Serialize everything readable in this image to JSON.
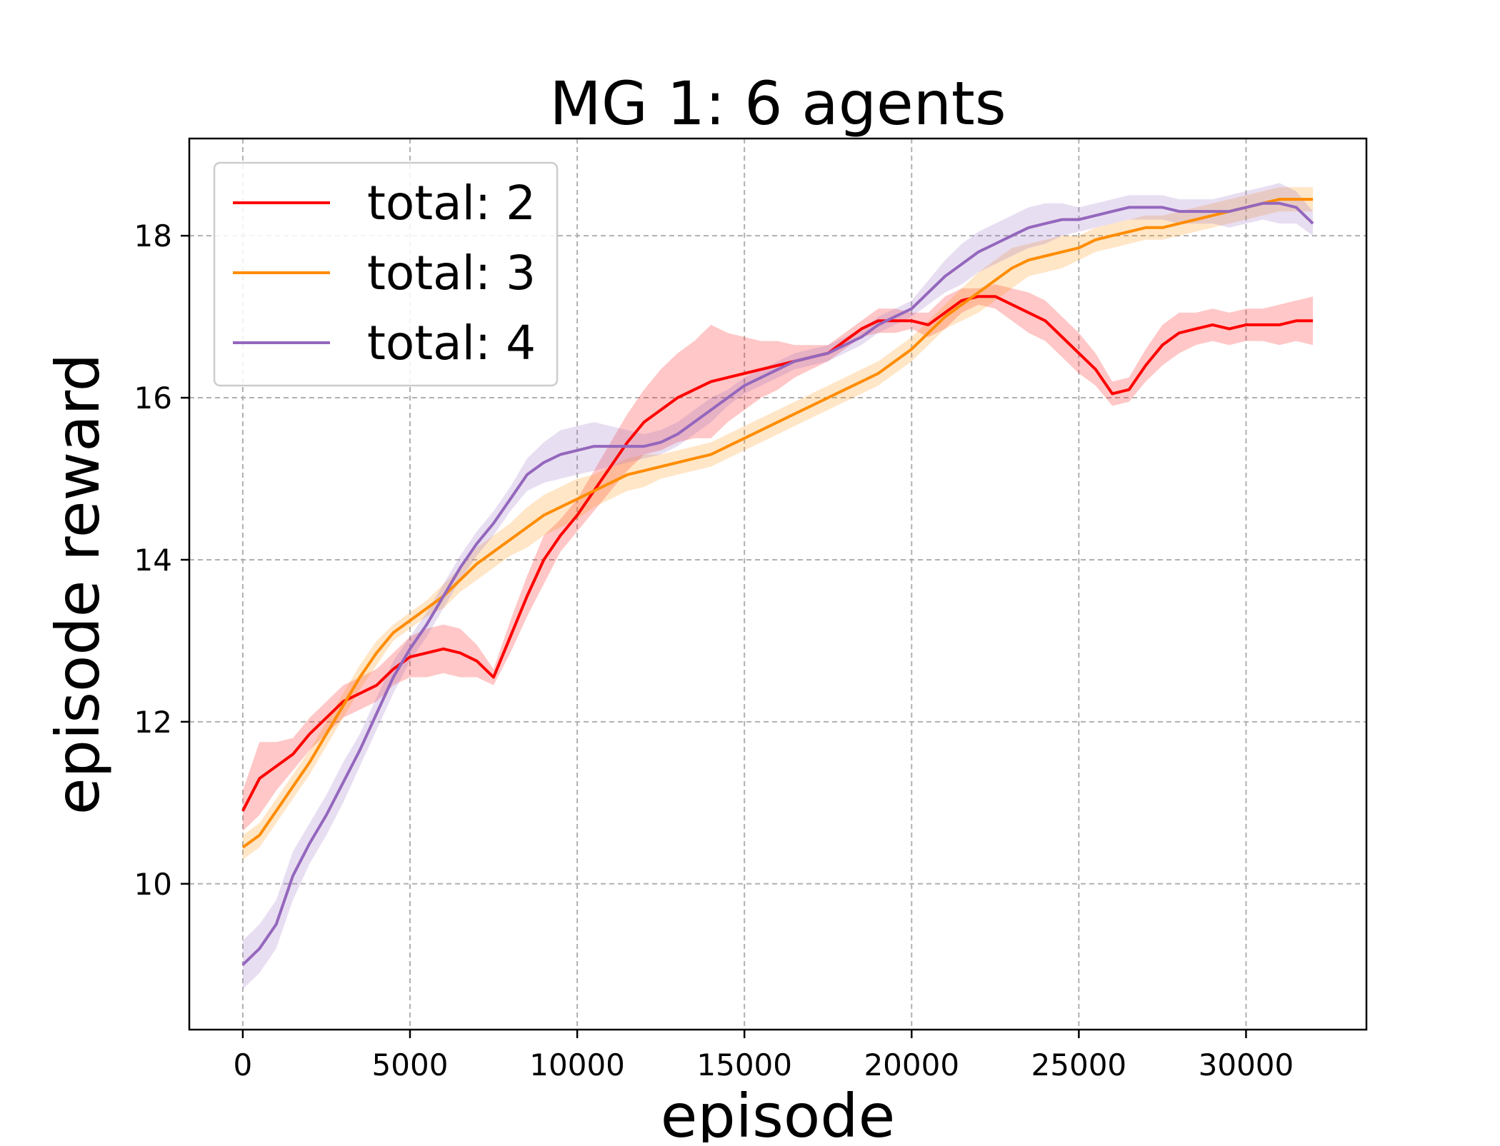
{
  "chart_data": {
    "type": "line",
    "title": "MG 1: 6 agents",
    "xlabel": "episode",
    "ylabel": "episode reward",
    "xlim": [
      -1600,
      33600
    ],
    "ylim": [
      8.2,
      19.2
    ],
    "xticks": [
      0,
      5000,
      10000,
      15000,
      20000,
      25000,
      30000
    ],
    "yticks": [
      10,
      12,
      14,
      16,
      18
    ],
    "grid": true,
    "legend_position": "top-left",
    "series": [
      {
        "name": "total: 2",
        "color": "#ff0000",
        "x": [
          0,
          500,
          1000,
          1500,
          2000,
          2500,
          3000,
          3500,
          4000,
          4500,
          5000,
          5500,
          6000,
          6500,
          7000,
          7500,
          8000,
          8500,
          9000,
          9500,
          10000,
          10500,
          11000,
          11500,
          12000,
          12500,
          13000,
          13500,
          14000,
          14500,
          15000,
          15500,
          16000,
          16500,
          17000,
          17500,
          18000,
          18500,
          19000,
          19500,
          20000,
          20500,
          21000,
          21500,
          22000,
          22500,
          23000,
          23500,
          24000,
          24500,
          25000,
          25500,
          26000,
          26500,
          27000,
          27500,
          28000,
          28500,
          29000,
          29500,
          30000,
          30500,
          31000,
          31500,
          32000
        ],
        "y": [
          10.9,
          11.3,
          11.45,
          11.6,
          11.85,
          12.05,
          12.25,
          12.35,
          12.45,
          12.65,
          12.8,
          12.85,
          12.9,
          12.85,
          12.75,
          12.55,
          13.05,
          13.55,
          14.0,
          14.3,
          14.55,
          14.85,
          15.15,
          15.45,
          15.7,
          15.85,
          16.0,
          16.1,
          16.2,
          16.25,
          16.3,
          16.35,
          16.4,
          16.45,
          16.5,
          16.55,
          16.7,
          16.85,
          16.95,
          16.95,
          16.95,
          16.9,
          17.05,
          17.2,
          17.25,
          17.25,
          17.15,
          17.05,
          16.95,
          16.75,
          16.55,
          16.35,
          16.05,
          16.1,
          16.4,
          16.65,
          16.8,
          16.85,
          16.9,
          16.85,
          16.9,
          16.9,
          16.9,
          16.95,
          16.95
        ],
        "band": [
          0.25,
          0.45,
          0.3,
          0.2,
          0.2,
          0.2,
          0.2,
          0.2,
          0.2,
          0.2,
          0.25,
          0.3,
          0.3,
          0.3,
          0.2,
          0.1,
          0.2,
          0.25,
          0.3,
          0.2,
          0.2,
          0.25,
          0.3,
          0.35,
          0.4,
          0.5,
          0.55,
          0.6,
          0.7,
          0.55,
          0.45,
          0.35,
          0.3,
          0.2,
          0.15,
          0.1,
          0.1,
          0.1,
          0.15,
          0.15,
          0.1,
          0.15,
          0.2,
          0.15,
          0.1,
          0.15,
          0.2,
          0.25,
          0.25,
          0.25,
          0.25,
          0.2,
          0.15,
          0.15,
          0.2,
          0.25,
          0.25,
          0.2,
          0.2,
          0.2,
          0.2,
          0.2,
          0.25,
          0.25,
          0.3
        ]
      },
      {
        "name": "total: 3",
        "color": "#ff8c00",
        "x": [
          0,
          500,
          1000,
          1500,
          2000,
          2500,
          3000,
          3500,
          4000,
          4500,
          5000,
          5500,
          6000,
          6500,
          7000,
          7500,
          8000,
          8500,
          9000,
          9500,
          10000,
          10500,
          11000,
          11500,
          12000,
          12500,
          13000,
          13500,
          14000,
          14500,
          15000,
          15500,
          16000,
          16500,
          17000,
          17500,
          18000,
          18500,
          19000,
          19500,
          20000,
          20500,
          21000,
          21500,
          22000,
          22500,
          23000,
          23500,
          24000,
          24500,
          25000,
          25500,
          26000,
          26500,
          27000,
          27500,
          28000,
          28500,
          29000,
          29500,
          30000,
          30500,
          31000,
          31500,
          32000
        ],
        "y": [
          10.45,
          10.6,
          10.9,
          11.2,
          11.5,
          11.85,
          12.2,
          12.55,
          12.85,
          13.1,
          13.25,
          13.4,
          13.55,
          13.75,
          13.95,
          14.1,
          14.25,
          14.4,
          14.55,
          14.65,
          14.75,
          14.85,
          14.95,
          15.05,
          15.1,
          15.15,
          15.2,
          15.25,
          15.3,
          15.4,
          15.5,
          15.6,
          15.7,
          15.8,
          15.9,
          16.0,
          16.1,
          16.2,
          16.3,
          16.45,
          16.6,
          16.8,
          17.0,
          17.15,
          17.3,
          17.45,
          17.6,
          17.7,
          17.75,
          17.8,
          17.85,
          17.95,
          18.0,
          18.05,
          18.1,
          18.1,
          18.15,
          18.2,
          18.25,
          18.3,
          18.35,
          18.4,
          18.45,
          18.45,
          18.45
        ],
        "band": [
          0.15,
          0.15,
          0.15,
          0.15,
          0.15,
          0.15,
          0.15,
          0.15,
          0.15,
          0.1,
          0.1,
          0.1,
          0.15,
          0.15,
          0.2,
          0.2,
          0.2,
          0.25,
          0.25,
          0.25,
          0.25,
          0.2,
          0.2,
          0.2,
          0.2,
          0.15,
          0.15,
          0.15,
          0.15,
          0.15,
          0.15,
          0.15,
          0.15,
          0.15,
          0.15,
          0.15,
          0.15,
          0.15,
          0.15,
          0.15,
          0.15,
          0.15,
          0.15,
          0.2,
          0.25,
          0.25,
          0.25,
          0.2,
          0.2,
          0.2,
          0.15,
          0.15,
          0.15,
          0.15,
          0.15,
          0.15,
          0.15,
          0.15,
          0.15,
          0.15,
          0.15,
          0.15,
          0.15,
          0.15,
          0.15
        ]
      },
      {
        "name": "total: 4",
        "color": "#9467bd",
        "x": [
          0,
          500,
          1000,
          1500,
          2000,
          2500,
          3000,
          3500,
          4000,
          4500,
          5000,
          5500,
          6000,
          6500,
          7000,
          7500,
          8000,
          8500,
          9000,
          9500,
          10000,
          10500,
          11000,
          11500,
          12000,
          12500,
          13000,
          13500,
          14000,
          14500,
          15000,
          15500,
          16000,
          16500,
          17000,
          17500,
          18000,
          18500,
          19000,
          19500,
          20000,
          20500,
          21000,
          21500,
          22000,
          22500,
          23000,
          23500,
          24000,
          24500,
          25000,
          25500,
          26000,
          26500,
          27000,
          27500,
          28000,
          28500,
          29000,
          29500,
          30000,
          30500,
          31000,
          31500,
          32000
        ],
        "y": [
          9.0,
          9.2,
          9.5,
          10.1,
          10.5,
          10.85,
          11.25,
          11.65,
          12.1,
          12.55,
          12.9,
          13.2,
          13.55,
          13.9,
          14.2,
          14.45,
          14.75,
          15.05,
          15.2,
          15.3,
          15.35,
          15.4,
          15.4,
          15.4,
          15.4,
          15.45,
          15.55,
          15.7,
          15.85,
          16.0,
          16.15,
          16.25,
          16.35,
          16.45,
          16.5,
          16.55,
          16.65,
          16.75,
          16.9,
          17.0,
          17.1,
          17.3,
          17.5,
          17.65,
          17.8,
          17.9,
          18.0,
          18.1,
          18.15,
          18.2,
          18.2,
          18.25,
          18.3,
          18.35,
          18.35,
          18.35,
          18.3,
          18.3,
          18.3,
          18.3,
          18.35,
          18.4,
          18.4,
          18.35,
          18.15
        ],
        "band": [
          0.3,
          0.3,
          0.3,
          0.3,
          0.25,
          0.25,
          0.25,
          0.2,
          0.2,
          0.2,
          0.15,
          0.15,
          0.15,
          0.15,
          0.15,
          0.15,
          0.15,
          0.2,
          0.25,
          0.3,
          0.3,
          0.3,
          0.25,
          0.2,
          0.15,
          0.15,
          0.15,
          0.15,
          0.15,
          0.1,
          0.1,
          0.1,
          0.1,
          0.1,
          0.1,
          0.1,
          0.1,
          0.1,
          0.1,
          0.1,
          0.1,
          0.15,
          0.2,
          0.25,
          0.25,
          0.25,
          0.25,
          0.25,
          0.25,
          0.2,
          0.15,
          0.15,
          0.15,
          0.15,
          0.15,
          0.15,
          0.15,
          0.15,
          0.15,
          0.2,
          0.2,
          0.2,
          0.25,
          0.2,
          0.15
        ]
      }
    ]
  }
}
